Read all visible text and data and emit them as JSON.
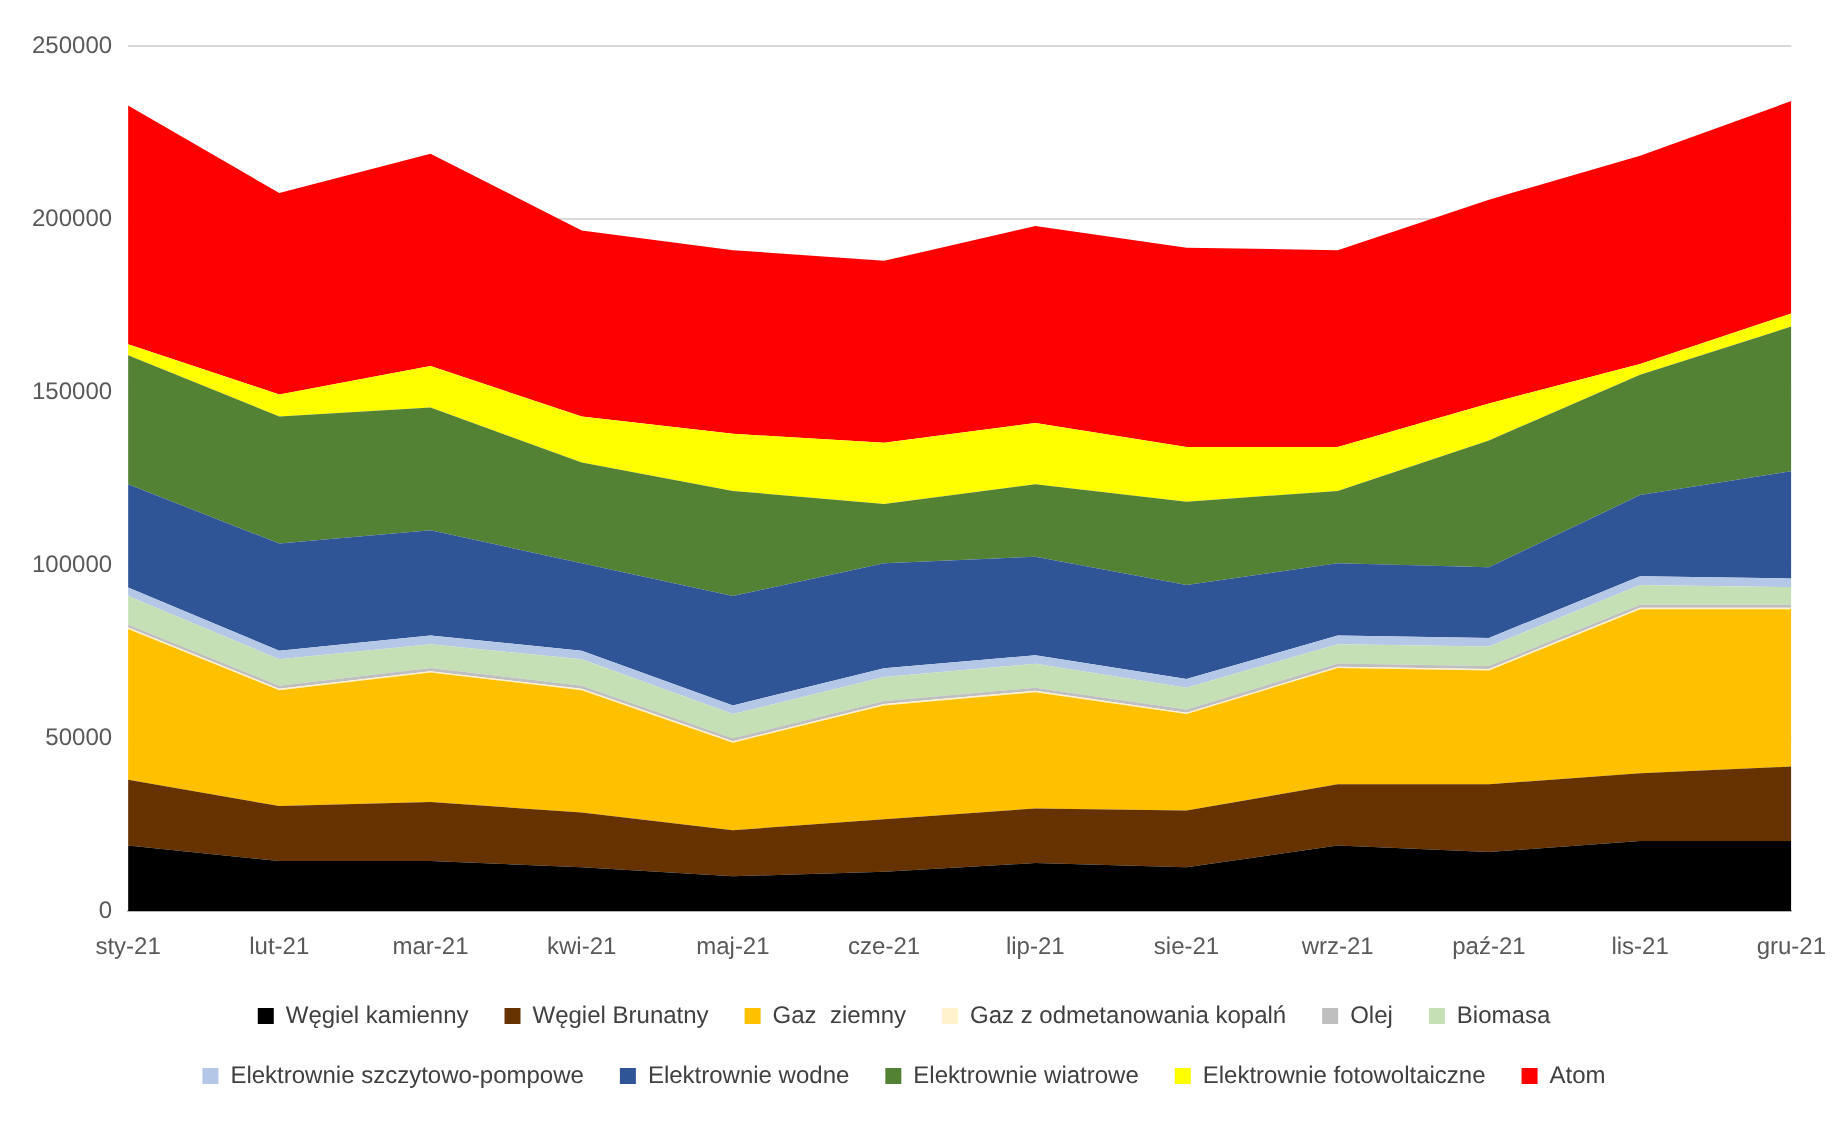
{
  "chart_data": {
    "type": "area",
    "stacked": true,
    "categories": [
      "sty-21",
      "lut-21",
      "mar-21",
      "kwi-21",
      "maj-21",
      "cze-21",
      "lip-21",
      "sie-21",
      "wrz-21",
      "paź-21",
      "lis-21",
      "gru-21"
    ],
    "ylim": [
      0,
      250000
    ],
    "yticks": [
      0,
      50000,
      100000,
      150000,
      200000,
      250000
    ],
    "grid": "y",
    "legend": "bottom",
    "series": [
      {
        "name": "Węgiel kamienny",
        "color": "#000000",
        "values": [
          19000,
          14500,
          14500,
          12700,
          10100,
          11400,
          13900,
          12700,
          19000,
          17100,
          20300,
          20300
        ]
      },
      {
        "name": "Węgiel Brunatny",
        "color": "#663300",
        "values": [
          19000,
          15900,
          17100,
          15800,
          13300,
          15200,
          15800,
          16400,
          17700,
          19600,
          19600,
          21500
        ]
      },
      {
        "name": "Gaz  ziemny",
        "color": "#ffc000",
        "values": [
          43600,
          33500,
          37400,
          35400,
          25300,
          32900,
          33600,
          27900,
          33600,
          32900,
          47400,
          45500
        ]
      },
      {
        "name": "Gaz z odmetanowania kopalń",
        "color": "#fff2cc",
        "values": [
          400,
          400,
          400,
          400,
          400,
          400,
          400,
          400,
          400,
          400,
          400,
          400
        ]
      },
      {
        "name": "Olej",
        "color": "#bfbfbf",
        "values": [
          900,
          900,
          900,
          900,
          900,
          900,
          900,
          900,
          900,
          900,
          900,
          900
        ]
      },
      {
        "name": "Biomasa",
        "color": "#c5e0b4",
        "values": [
          8200,
          7600,
          6900,
          7600,
          7000,
          6900,
          6900,
          6300,
          5600,
          5600,
          5700,
          5100
        ]
      },
      {
        "name": "Elektrownie szczytowo-pompowe",
        "color": "#b4c7e7",
        "values": [
          2500,
          2500,
          2500,
          2500,
          2500,
          2500,
          2500,
          2500,
          2500,
          2500,
          2500,
          2500
        ]
      },
      {
        "name": "Elektrownie wodne",
        "color": "#2f5597",
        "values": [
          29800,
          31000,
          30400,
          25300,
          31600,
          30400,
          28500,
          27200,
          20900,
          20400,
          23500,
          31000
        ]
      },
      {
        "name": "Elektrownie wiatrowe",
        "color": "#548235",
        "values": [
          37300,
          36700,
          35500,
          29100,
          30400,
          17100,
          20900,
          24100,
          20900,
          36700,
          34800,
          41800
        ]
      },
      {
        "name": "Elektrownie fotowoltaiczne",
        "color": "#ffff00",
        "values": [
          3200,
          6400,
          12000,
          13300,
          16500,
          17700,
          17700,
          15800,
          12700,
          10700,
          3100,
          3800
        ]
      },
      {
        "name": "Atom",
        "color": "#ff0000",
        "values": [
          69000,
          58200,
          61400,
          53800,
          53100,
          52600,
          57000,
          57600,
          56900,
          58900,
          60200,
          61400
        ]
      }
    ]
  }
}
